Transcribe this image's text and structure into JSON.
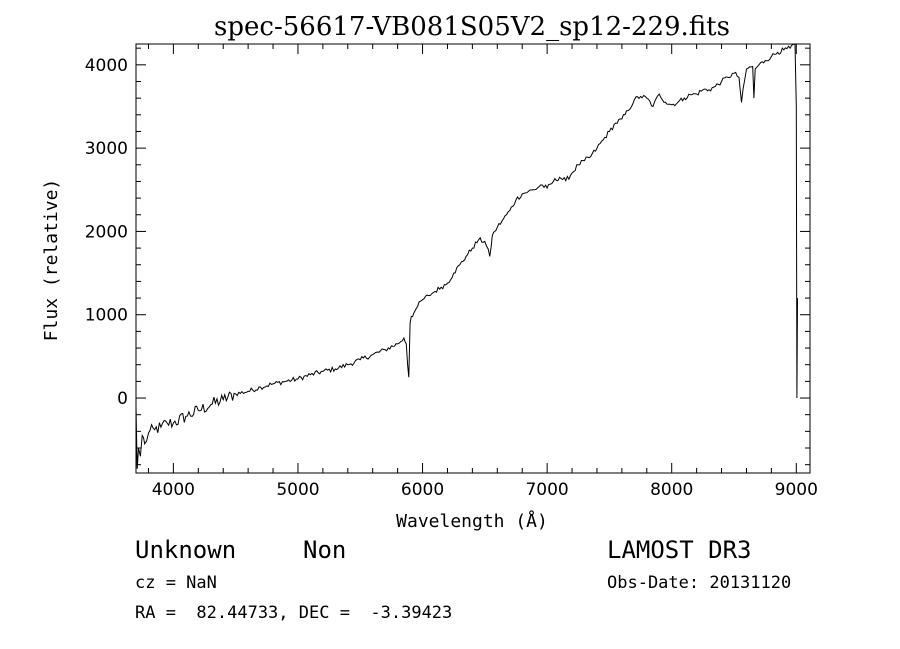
{
  "chart_data": {
    "type": "line",
    "title": "spec-56617-VB081S05V2_sp12-229.fits",
    "xlabel": "Wavelength (Å)",
    "ylabel": "Flux (relative)",
    "xlim": [
      3700,
      9110
    ],
    "ylim": [
      -900,
      4250
    ],
    "xticks": [
      4000,
      5000,
      6000,
      7000,
      8000,
      9000
    ],
    "yticks": [
      0,
      1000,
      2000,
      3000,
      4000
    ],
    "series": [
      {
        "name": "flux",
        "x": [
          3700,
          3710,
          3720,
          3735,
          3750,
          3770,
          3800,
          3850,
          3900,
          3950,
          4000,
          4100,
          4200,
          4300,
          4400,
          4500,
          4600,
          4700,
          4800,
          4900,
          5000,
          5100,
          5200,
          5300,
          5400,
          5500,
          5600,
          5700,
          5800,
          5850,
          5870,
          5880,
          5890,
          5900,
          5910,
          5930,
          5960,
          6000,
          6050,
          6100,
          6150,
          6200,
          6250,
          6300,
          6350,
          6400,
          6450,
          6500,
          6540,
          6560,
          6580,
          6600,
          6650,
          6700,
          6750,
          6800,
          6850,
          6900,
          6950,
          7000,
          7050,
          7100,
          7150,
          7200,
          7250,
          7300,
          7350,
          7400,
          7450,
          7500,
          7550,
          7600,
          7650,
          7700,
          7750,
          7800,
          7850,
          7900,
          7950,
          8000,
          8050,
          8100,
          8150,
          8200,
          8250,
          8300,
          8350,
          8400,
          8450,
          8500,
          8540,
          8560,
          8600,
          8650,
          8660,
          8670,
          8700,
          8750,
          8800,
          8850,
          8900,
          8950,
          8990,
          9000,
          9005,
          9010
        ],
        "y": [
          -100,
          -850,
          -600,
          -700,
          -450,
          -550,
          -420,
          -380,
          -350,
          -300,
          -300,
          -220,
          -150,
          -80,
          -20,
          50,
          80,
          130,
          170,
          200,
          230,
          280,
          320,
          350,
          400,
          460,
          520,
          580,
          650,
          720,
          650,
          400,
          250,
          900,
          980,
          1020,
          1100,
          1180,
          1230,
          1280,
          1330,
          1380,
          1500,
          1600,
          1700,
          1800,
          1900,
          1880,
          1700,
          1950,
          2000,
          2050,
          2150,
          2250,
          2380,
          2450,
          2480,
          2500,
          2560,
          2520,
          2600,
          2650,
          2610,
          2700,
          2800,
          2850,
          2900,
          3000,
          3100,
          3200,
          3300,
          3350,
          3450,
          3580,
          3620,
          3600,
          3500,
          3650,
          3550,
          3520,
          3550,
          3600,
          3640,
          3650,
          3700,
          3700,
          3740,
          3800,
          3850,
          3900,
          3850,
          3550,
          3950,
          3980,
          3600,
          3950,
          4000,
          4050,
          4100,
          4150,
          4180,
          4200,
          4250,
          3500,
          0,
          1200
        ]
      }
    ]
  },
  "info": {
    "class": "Unknown",
    "subclass": "Non",
    "survey": "LAMOST DR3",
    "cz": "cz = NaN",
    "obs_date": "Obs-Date: 20131120",
    "coords": "RA =  82.44733, DEC =  -3.39423"
  }
}
